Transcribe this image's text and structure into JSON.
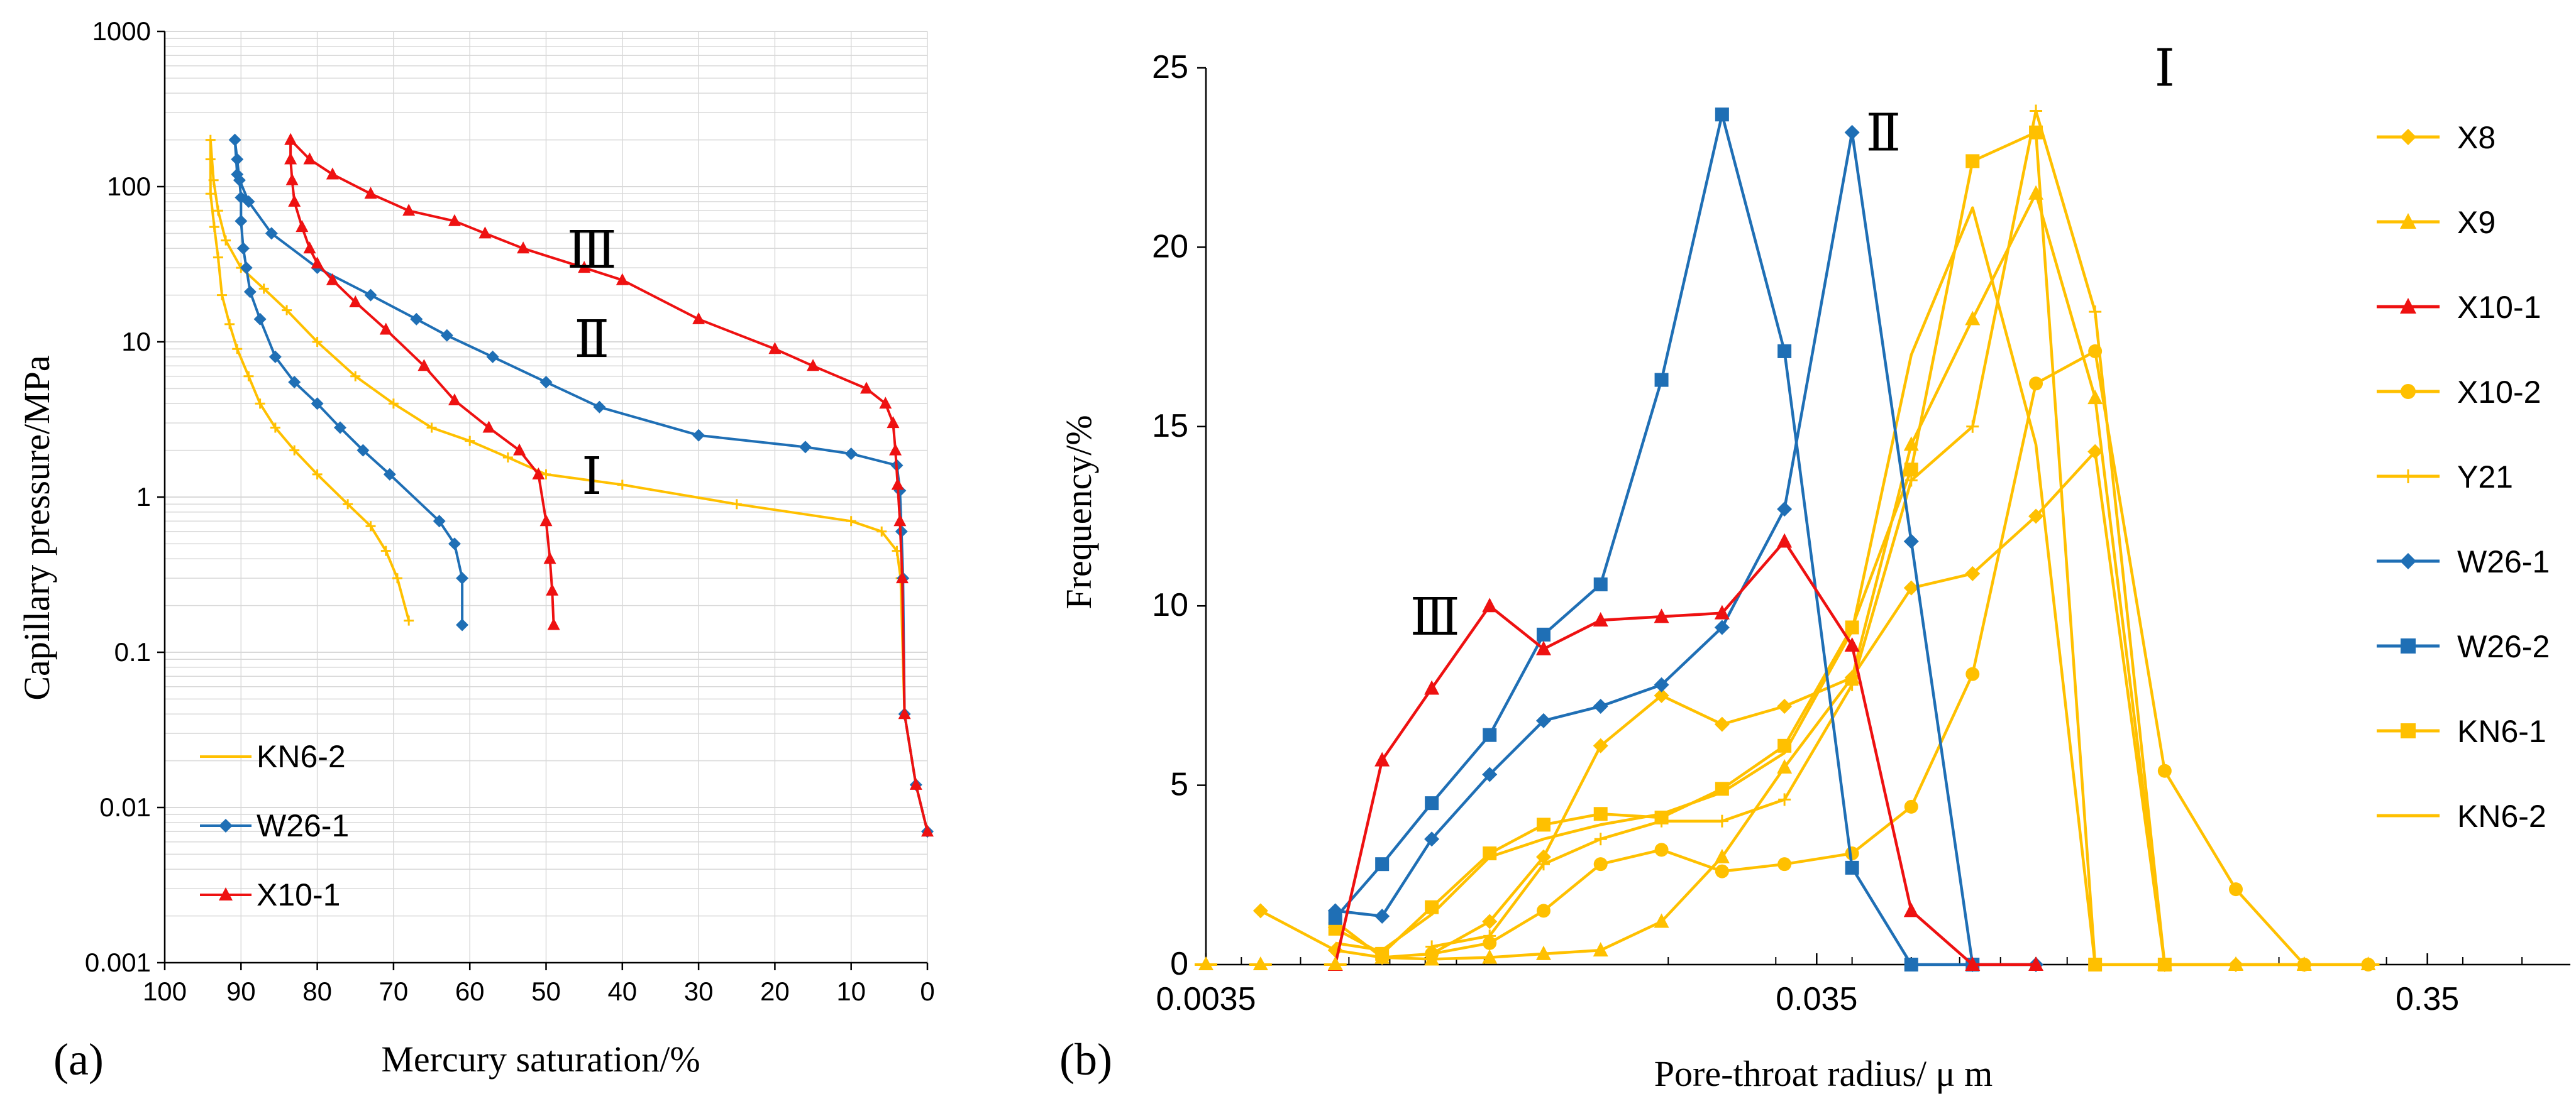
{
  "colors": {
    "yellow": "#FFC000",
    "blue": "#1F6FB5",
    "red": "#EE1111",
    "grid": "#D9D9D9",
    "axis": "#000000"
  },
  "panel_labels": {
    "a": "(a)",
    "b": "(b)"
  },
  "chart_data": [
    {
      "type": "line",
      "panel": "(a)",
      "xlabel": "Mercury saturation/%",
      "ylabel": "Capillary pressure/MPa",
      "x_reversed": true,
      "xlim": [
        100,
        0
      ],
      "ylim": [
        0.001,
        1000
      ],
      "yscale": "log",
      "x_ticks": [
        "100",
        "90",
        "80",
        "70",
        "60",
        "50",
        "40",
        "30",
        "20",
        "10",
        "0"
      ],
      "y_ticks": [
        "0.001",
        "0.01",
        "0.1",
        "1",
        "10",
        "100",
        "1000"
      ],
      "legend_position": "bottom-left",
      "annotations": [
        {
          "text": "Ⅲ",
          "x": 44,
          "y": 30
        },
        {
          "text": "Ⅱ",
          "x": 44,
          "y": 8
        },
        {
          "text": "Ⅰ",
          "x": 44,
          "y": 1.05
        }
      ],
      "series": [
        {
          "name": "KN6-2",
          "color": "yellow",
          "marker": "plus",
          "points": [
            [
              0,
              0.007
            ],
            [
              1.5,
              0.014
            ],
            [
              3,
              0.04
            ],
            [
              3.5,
              0.3
            ],
            [
              4,
              0.45
            ],
            [
              6,
              0.6
            ],
            [
              10,
              0.7
            ],
            [
              25,
              0.9
            ],
            [
              40,
              1.2
            ],
            [
              50,
              1.4
            ],
            [
              55,
              1.8
            ],
            [
              60,
              2.3
            ],
            [
              65,
              2.8
            ],
            [
              70,
              4
            ],
            [
              75,
              6
            ],
            [
              80,
              10
            ],
            [
              84,
              16
            ],
            [
              87,
              22
            ],
            [
              90,
              30
            ],
            [
              92,
              45
            ],
            [
              93,
              70
            ],
            [
              93.6,
              110
            ],
            [
              94,
              200
            ]
          ],
          "branch": [
            [
              94,
              200
            ],
            [
              94,
              150
            ],
            [
              94,
              90
            ],
            [
              93.5,
              55
            ],
            [
              93,
              35
            ],
            [
              92.5,
              20
            ],
            [
              91.5,
              13
            ],
            [
              90.5,
              9
            ],
            [
              89,
              6
            ],
            [
              87.5,
              4
            ],
            [
              85.5,
              2.8
            ],
            [
              83,
              2
            ],
            [
              80,
              1.4
            ],
            [
              76,
              0.9
            ],
            [
              73,
              0.65
            ],
            [
              71,
              0.45
            ],
            [
              69.5,
              0.3
            ],
            [
              68,
              0.16
            ]
          ]
        },
        {
          "name": "W26-1",
          "color": "blue",
          "marker": "diamond",
          "points": [
            [
              0,
              0.007
            ],
            [
              1.5,
              0.014
            ],
            [
              3,
              0.04
            ],
            [
              3.2,
              0.3
            ],
            [
              3.4,
              0.6
            ],
            [
              3.6,
              1.1
            ],
            [
              4,
              1.6
            ],
            [
              10,
              1.9
            ],
            [
              16,
              2.1
            ],
            [
              30,
              2.5
            ],
            [
              43,
              3.8
            ],
            [
              50,
              5.5
            ],
            [
              57,
              8
            ],
            [
              63,
              11
            ],
            [
              67,
              14
            ],
            [
              73,
              20
            ],
            [
              80,
              30
            ],
            [
              86,
              50
            ],
            [
              89,
              80
            ],
            [
              90.5,
              120
            ],
            [
              90.8,
              200
            ]
          ],
          "branch": [
            [
              90.8,
              200
            ],
            [
              90.5,
              150
            ],
            [
              90.2,
              110
            ],
            [
              90,
              85
            ],
            [
              90,
              60
            ],
            [
              89.7,
              40
            ],
            [
              89.3,
              30
            ],
            [
              88.8,
              21
            ],
            [
              87.5,
              14
            ],
            [
              85.5,
              8
            ],
            [
              83,
              5.5
            ],
            [
              80,
              4
            ],
            [
              77,
              2.8
            ],
            [
              74,
              2
            ],
            [
              70.5,
              1.4
            ],
            [
              64,
              0.7
            ],
            [
              62,
              0.5
            ],
            [
              61,
              0.3
            ],
            [
              61,
              0.15
            ]
          ]
        },
        {
          "name": "X10-1",
          "color": "red",
          "marker": "triangle",
          "points": [
            [
              0,
              0.007
            ],
            [
              1.5,
              0.014
            ],
            [
              3,
              0.04
            ],
            [
              3.3,
              0.3
            ],
            [
              3.6,
              0.7
            ],
            [
              3.9,
              1.2
            ],
            [
              4.2,
              2
            ],
            [
              4.5,
              3
            ],
            [
              5.5,
              4
            ],
            [
              8,
              5
            ],
            [
              15,
              7
            ],
            [
              20,
              9
            ],
            [
              30,
              14
            ],
            [
              40,
              25
            ],
            [
              45,
              30
            ],
            [
              53,
              40
            ],
            [
              58,
              50
            ],
            [
              62,
              60
            ],
            [
              68,
              70
            ],
            [
              73,
              90
            ],
            [
              78,
              120
            ],
            [
              81,
              150
            ],
            [
              83.5,
              200
            ]
          ],
          "branch": [
            [
              83.5,
              200
            ],
            [
              83.5,
              150
            ],
            [
              83.3,
              110
            ],
            [
              83,
              80
            ],
            [
              82,
              55
            ],
            [
              81,
              40
            ],
            [
              80,
              32
            ],
            [
              78,
              25
            ],
            [
              75,
              18
            ],
            [
              71,
              12
            ],
            [
              66,
              7
            ],
            [
              62,
              4.2
            ],
            [
              57.5,
              2.8
            ],
            [
              53.5,
              2
            ],
            [
              51,
              1.4
            ],
            [
              50,
              0.7
            ],
            [
              49.5,
              0.4
            ],
            [
              49.2,
              0.25
            ],
            [
              49,
              0.15
            ]
          ]
        }
      ],
      "legend": [
        "KN6-2",
        "W26-1",
        "X10-1"
      ]
    },
    {
      "type": "line",
      "panel": "(b)",
      "xlabel": "Pore-throat radius/ μ m",
      "ylabel": "Frequency/%",
      "xscale": "log",
      "xlim": [
        0.0035,
        0.6
      ],
      "ylim": [
        0,
        25
      ],
      "x_ticks": [
        "0.0035",
        "0.035",
        "0.35"
      ],
      "y_ticks": [
        "0",
        "5",
        "10",
        "15",
        "20",
        "25"
      ],
      "legend_position": "right",
      "annotations": [
        {
          "text": "Ⅰ",
          "x": 0.13,
          "y": 24.5
        },
        {
          "text": "Ⅱ",
          "x": 0.045,
          "y": 22.7
        },
        {
          "text": "Ⅲ",
          "x": 0.0083,
          "y": 9.2
        }
      ],
      "series": [
        {
          "name": "X8",
          "color": "yellow",
          "marker": "diamond",
          "x": [
            0.0043,
            0.0057,
            0.0068,
            0.0082,
            0.0102,
            0.0125,
            0.0155,
            0.0195,
            0.0245,
            0.031,
            0.04,
            0.05,
            0.063,
            0.08,
            0.1,
            0.13,
            0.17,
            0.22
          ],
          "y": [
            1.5,
            0.4,
            0.2,
            0.3,
            1.2,
            3,
            6.1,
            7.5,
            6.7,
            7.2,
            8,
            10.5,
            10.9,
            12.5,
            14.3,
            0,
            0,
            0
          ]
        },
        {
          "name": "X9",
          "color": "yellow",
          "marker": "triangle",
          "x": [
            0.0057,
            0.0068,
            0.0082,
            0.0102,
            0.0125,
            0.0155,
            0.0195,
            0.0245,
            0.031,
            0.04,
            0.05,
            0.063,
            0.08,
            0.1,
            0.13,
            0.17,
            0.22
          ],
          "y": [
            1.2,
            0.2,
            0.15,
            0.2,
            0.3,
            0.4,
            1.2,
            3,
            5.5,
            8,
            14.5,
            18,
            21.5,
            15.8,
            0,
            0,
            0
          ]
        },
        {
          "name": "X10-1",
          "color": "red",
          "marker": "triangle",
          "x": [
            0.0057,
            0.0068,
            0.0082,
            0.0102,
            0.0125,
            0.0155,
            0.0195,
            0.0245,
            0.031,
            0.04,
            0.05,
            0.063,
            0.08
          ],
          "y": [
            0,
            5.7,
            7.7,
            10,
            8.8,
            9.6,
            9.7,
            9.8,
            11.8,
            8.9,
            1.5,
            0,
            0
          ]
        },
        {
          "name": "X10-2",
          "color": "yellow",
          "marker": "circle",
          "x": [
            0.0082,
            0.0102,
            0.0125,
            0.0155,
            0.0195,
            0.0245,
            0.031,
            0.04,
            0.05,
            0.063,
            0.08,
            0.1,
            0.13,
            0.17,
            0.22,
            0.28
          ],
          "y": [
            0.3,
            0.6,
            1.5,
            2.8,
            3.2,
            2.6,
            2.8,
            3.1,
            4.4,
            8.1,
            16.2,
            17.1,
            5.4,
            2.1,
            0,
            0
          ]
        },
        {
          "name": "Y21",
          "color": "yellow",
          "marker": "plus",
          "x": [
            0.0082,
            0.0102,
            0.0125,
            0.0155,
            0.0195,
            0.0245,
            0.031,
            0.04,
            0.05,
            0.063,
            0.08,
            0.1,
            0.13
          ],
          "y": [
            0.5,
            0.8,
            2.8,
            3.5,
            4,
            4,
            4.6,
            7.8,
            13.5,
            15,
            23.8,
            18.2,
            0
          ]
        },
        {
          "name": "W26-1",
          "color": "blue",
          "marker": "diamond",
          "x": [
            0.0057,
            0.0068,
            0.0082,
            0.0102,
            0.0125,
            0.0155,
            0.0195,
            0.0245,
            0.031,
            0.04,
            0.05,
            0.063,
            0.08
          ],
          "y": [
            1.5,
            1.35,
            3.5,
            5.3,
            6.8,
            7.2,
            7.8,
            9.4,
            12.7,
            23.2,
            11.8,
            0,
            0
          ]
        },
        {
          "name": "W26-2",
          "color": "blue",
          "marker": "square",
          "x": [
            0.0057,
            0.0068,
            0.0082,
            0.0102,
            0.0125,
            0.0155,
            0.0195,
            0.0245,
            0.031,
            0.04,
            0.05,
            0.063
          ],
          "y": [
            1.3,
            2.8,
            4.5,
            6.4,
            9.2,
            10.6,
            16.3,
            23.7,
            17.1,
            2.7,
            0,
            0
          ]
        },
        {
          "name": "KN6-1",
          "color": "yellow",
          "marker": "square",
          "x": [
            0.0057,
            0.0068,
            0.0082,
            0.0102,
            0.0125,
            0.0155,
            0.0195,
            0.0245,
            0.031,
            0.04,
            0.05,
            0.063,
            0.08,
            0.1,
            0.13
          ],
          "y": [
            1,
            0.3,
            1.6,
            3.1,
            3.9,
            4.2,
            4.1,
            4.9,
            6.1,
            9.4,
            13.8,
            22.4,
            23.2,
            0,
            0
          ]
        },
        {
          "name": "KN6-2",
          "color": "yellow",
          "marker": "none",
          "x": [
            0.0057,
            0.0068,
            0.0082,
            0.0102,
            0.0125,
            0.0155,
            0.0195,
            0.0245,
            0.031,
            0.04,
            0.05,
            0.063,
            0.08,
            0.1
          ],
          "y": [
            0.6,
            0.4,
            1.4,
            3,
            3.5,
            3.9,
            4.2,
            4.8,
            5.9,
            9.3,
            17,
            21.1,
            14.5,
            0
          ]
        }
      ],
      "extra_points": [
        [
          0.0035,
          0
        ],
        [
          0.0043,
          0
        ],
        [
          0.0057,
          0
        ],
        [
          0.13,
          0
        ],
        [
          0.17,
          0
        ],
        [
          0.22,
          0
        ],
        [
          0.28,
          0
        ]
      ],
      "legend": [
        "X8",
        "X9",
        "X10-1",
        "X10-2",
        "Y21",
        "W26-1",
        "W26-2",
        "KN6-1",
        "KN6-2"
      ]
    }
  ]
}
